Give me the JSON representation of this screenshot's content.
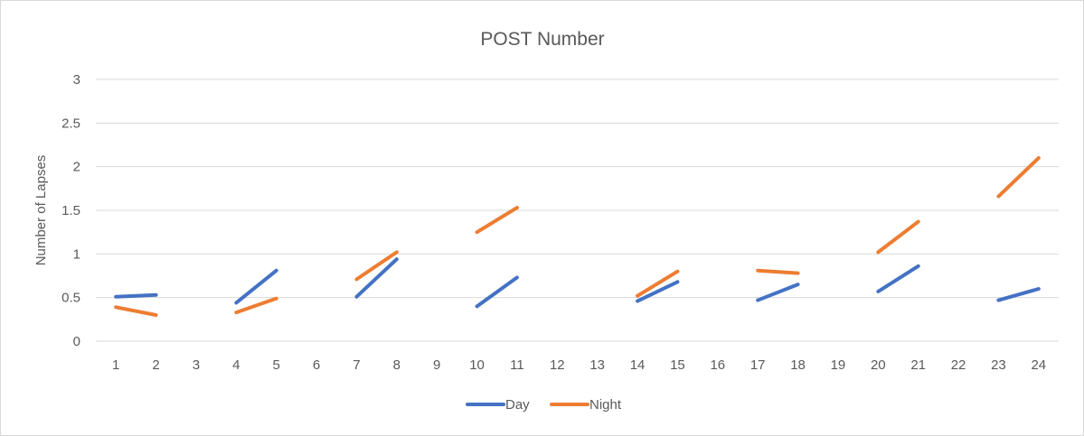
{
  "chart_data": {
    "type": "line",
    "title": "POST Number",
    "xlabel": "",
    "ylabel": "Number of Lapses",
    "categories": [
      "1",
      "2",
      "3",
      "4",
      "5",
      "6",
      "7",
      "8",
      "9",
      "10",
      "11",
      "12",
      "13",
      "14",
      "15",
      "16",
      "17",
      "18",
      "19",
      "20",
      "21",
      "22",
      "23",
      "24"
    ],
    "ylim": [
      0,
      3
    ],
    "yticks": [
      "0",
      "0.5",
      "1",
      "1.5",
      "2",
      "2.5",
      "3"
    ],
    "grid": true,
    "legend_position": "bottom",
    "series": [
      {
        "name": "Day",
        "color": "#4472c4",
        "values": [
          0.51,
          0.53,
          null,
          0.44,
          0.81,
          null,
          0.51,
          0.94,
          null,
          0.4,
          0.73,
          null,
          null,
          0.46,
          0.68,
          null,
          0.47,
          0.65,
          null,
          0.57,
          0.86,
          null,
          0.47,
          0.6
        ]
      },
      {
        "name": "Night",
        "color": "#ed7d31",
        "values": [
          0.39,
          0.3,
          null,
          0.33,
          0.49,
          null,
          0.71,
          1.02,
          null,
          1.25,
          1.53,
          null,
          null,
          0.52,
          0.8,
          null,
          0.81,
          0.78,
          null,
          1.02,
          1.37,
          null,
          1.66,
          2.1
        ]
      }
    ]
  }
}
